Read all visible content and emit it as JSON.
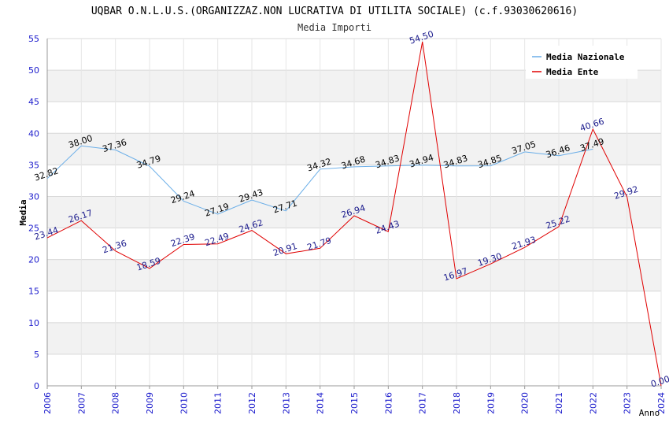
{
  "chart_data": {
    "type": "line",
    "title": "UQBAR O.N.L.U.S.(ORGANIZZAZ.NON LUCRATIVA DI UTILITA SOCIALE) (c.f.93030620616)",
    "subtitle": "Media Importi",
    "xlabel": "Anno",
    "ylabel": "Media",
    "ylim": [
      0,
      55
    ],
    "yticks": [
      0,
      5,
      10,
      15,
      20,
      25,
      30,
      35,
      40,
      45,
      50,
      55
    ],
    "x": [
      "2006",
      "2007",
      "2008",
      "2009",
      "2010",
      "2011",
      "2012",
      "2013",
      "2014",
      "2015",
      "2016",
      "2017",
      "2018",
      "2019",
      "2020",
      "2021",
      "2022",
      "2023",
      "2024"
    ],
    "grid": true,
    "legend_position": "top-right",
    "series": [
      {
        "name": "Media Nazionale",
        "color": "#6aaee8",
        "label_color": "#000000",
        "values": [
          32.82,
          38.0,
          37.36,
          34.79,
          29.24,
          27.19,
          29.43,
          27.71,
          34.32,
          34.68,
          34.83,
          34.94,
          34.83,
          34.85,
          37.05,
          36.46,
          37.49,
          null,
          null
        ],
        "labels": [
          "32.82",
          "38.00",
          "37.36",
          "34.79",
          "29.24",
          "27.19",
          "29.43",
          "27.71",
          "34.32",
          "34.68",
          "34.83",
          "34.94",
          "34.83",
          "34.85",
          "37.05",
          "36.46",
          "37.49",
          null,
          null
        ]
      },
      {
        "name": "Media Ente",
        "color": "#e00000",
        "label_color": "#1a1a8c",
        "values": [
          23.44,
          26.17,
          21.36,
          18.59,
          22.39,
          22.49,
          24.62,
          20.91,
          21.79,
          26.94,
          24.43,
          54.5,
          16.97,
          19.3,
          21.93,
          25.22,
          40.66,
          29.92,
          0.0
        ],
        "labels": [
          "23.44",
          "26.17",
          "21.36",
          "18.59",
          "22.39",
          "22.49",
          "24.62",
          "20.91",
          "21.79",
          "26.94",
          "24.43",
          "54.50",
          "16.97",
          "19.30",
          "21.93",
          "25.22",
          "40.66",
          "29.92",
          "0.00"
        ]
      }
    ]
  }
}
